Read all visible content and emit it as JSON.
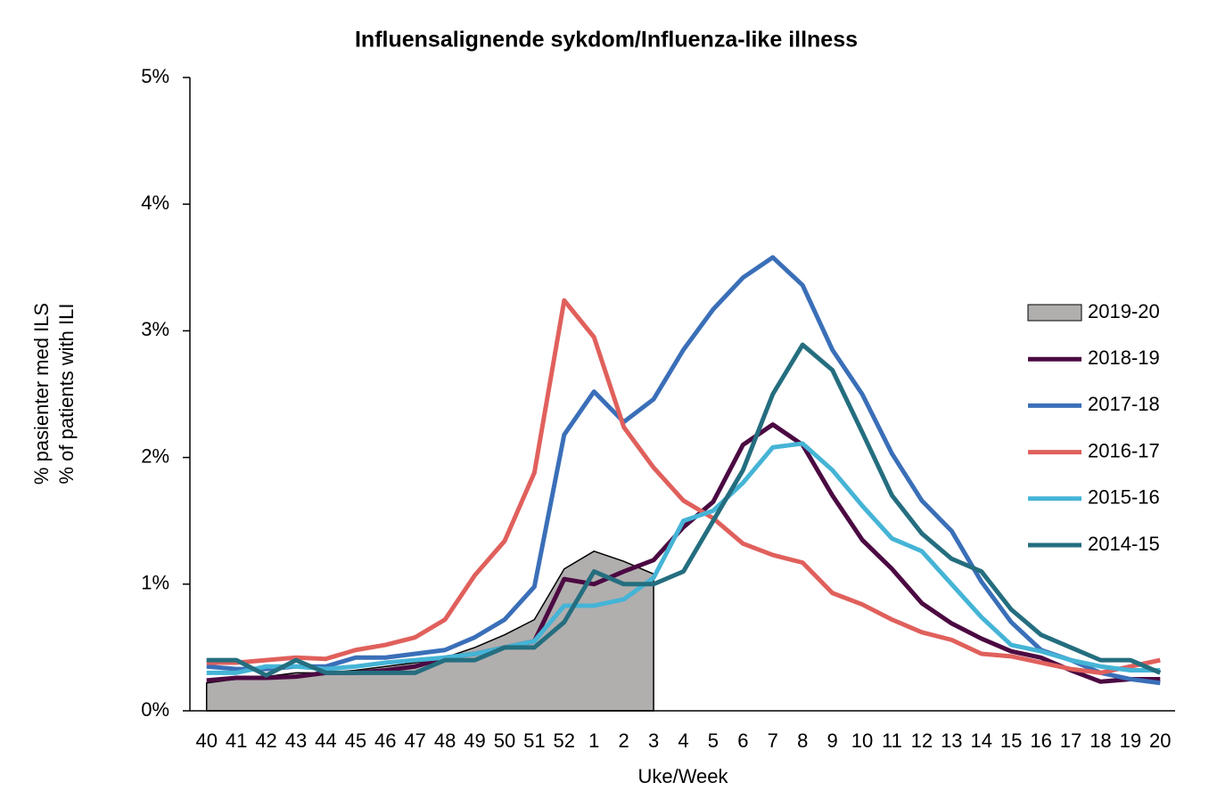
{
  "chart_data": {
    "type": "line",
    "title": "Influensalignende sykdom/Influenza-like illness",
    "x_label": "Uke/Week",
    "y_label": [
      "% pasienter med ILS",
      "% of patients with ILI"
    ],
    "categories": [
      "40",
      "41",
      "42",
      "43",
      "44",
      "45",
      "46",
      "47",
      "48",
      "49",
      "50",
      "51",
      "52",
      "1",
      "2",
      "3",
      "4",
      "5",
      "6",
      "7",
      "8",
      "9",
      "10",
      "11",
      "12",
      "13",
      "14",
      "15",
      "16",
      "17",
      "18",
      "19",
      "20"
    ],
    "ylim": [
      0,
      5
    ],
    "yticks": [
      {
        "value": 0,
        "label": "0%"
      },
      {
        "value": 1,
        "label": "1%"
      },
      {
        "value": 2,
        "label": "2%"
      },
      {
        "value": 3,
        "label": "3%"
      },
      {
        "value": 4,
        "label": "4%"
      },
      {
        "value": 5,
        "label": "5%"
      }
    ],
    "legend": "right",
    "series": [
      {
        "name": "2019-20",
        "type": "area",
        "color": "#b1aeae",
        "values": [
          0.22,
          0.25,
          0.27,
          0.3,
          0.3,
          0.32,
          0.35,
          0.38,
          0.42,
          0.5,
          0.6,
          0.72,
          1.12,
          1.26,
          1.18,
          1.08,
          null,
          null,
          null,
          null,
          null,
          null,
          null,
          null,
          null,
          null,
          null,
          null,
          null,
          null,
          null,
          null,
          null
        ]
      },
      {
        "name": "2018-19",
        "type": "line",
        "color": "#4b0a42",
        "values": [
          0.24,
          0.26,
          0.26,
          0.27,
          0.3,
          0.3,
          0.32,
          0.35,
          0.42,
          0.45,
          0.5,
          0.55,
          1.04,
          1.0,
          1.1,
          1.19,
          1.45,
          1.65,
          2.1,
          2.26,
          2.1,
          1.7,
          1.35,
          1.12,
          0.85,
          0.69,
          0.57,
          0.47,
          0.42,
          0.32,
          0.23,
          0.25,
          0.25
        ]
      },
      {
        "name": "2017-18",
        "type": "line",
        "color": "#3a6fb8",
        "values": [
          0.35,
          0.33,
          0.33,
          0.35,
          0.35,
          0.42,
          0.42,
          0.45,
          0.48,
          0.58,
          0.72,
          0.98,
          2.18,
          2.52,
          2.28,
          2.46,
          2.85,
          3.17,
          3.42,
          3.58,
          3.36,
          2.85,
          2.5,
          2.03,
          1.66,
          1.42,
          1.02,
          0.7,
          0.48,
          0.4,
          0.3,
          0.25,
          0.22
        ]
      },
      {
        "name": "2016-17",
        "type": "line",
        "color": "#e0605c",
        "values": [
          0.38,
          0.38,
          0.4,
          0.42,
          0.41,
          0.48,
          0.52,
          0.58,
          0.72,
          1.07,
          1.34,
          1.88,
          3.24,
          2.95,
          2.24,
          1.92,
          1.66,
          1.52,
          1.32,
          1.23,
          1.17,
          0.93,
          0.84,
          0.72,
          0.62,
          0.56,
          0.45,
          0.43,
          0.38,
          0.33,
          0.3,
          0.35,
          0.4
        ]
      },
      {
        "name": "2015-16",
        "type": "line",
        "color": "#45b4d6",
        "values": [
          0.3,
          0.3,
          0.35,
          0.35,
          0.33,
          0.35,
          0.38,
          0.4,
          0.42,
          0.45,
          0.5,
          0.55,
          0.83,
          0.83,
          0.88,
          1.05,
          1.5,
          1.58,
          1.8,
          2.08,
          2.11,
          1.9,
          1.62,
          1.36,
          1.26,
          1.0,
          0.74,
          0.52,
          0.47,
          0.4,
          0.35,
          0.32,
          0.32
        ]
      },
      {
        "name": "2014-15",
        "type": "line",
        "color": "#246e7f",
        "values": [
          0.4,
          0.4,
          0.28,
          0.4,
          0.3,
          0.3,
          0.3,
          0.3,
          0.4,
          0.4,
          0.5,
          0.5,
          0.7,
          1.1,
          1.0,
          1.0,
          1.1,
          1.5,
          1.9,
          2.5,
          2.89,
          2.69,
          2.2,
          1.7,
          1.4,
          1.2,
          1.1,
          0.8,
          0.6,
          0.5,
          0.4,
          0.4,
          0.3
        ]
      }
    ]
  }
}
